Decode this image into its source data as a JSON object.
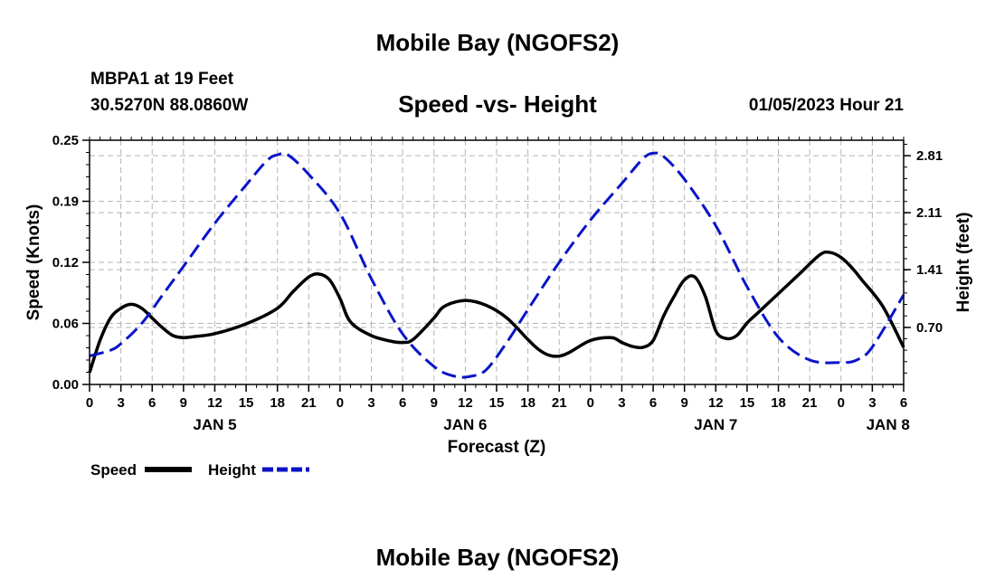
{
  "header": {
    "title": "Mobile Bay (NGOFS2)",
    "station_name": "MBPA1 at 19 Feet",
    "station_coords": "30.5270N  88.0860W",
    "date_text": "01/05/2023 Hour 21"
  },
  "footer": {
    "title": "Mobile Bay (NGOFS2)"
  },
  "chart_data": {
    "type": "line",
    "title": "Speed -vs- Height",
    "xlabel": "Forecast (Z)",
    "ylabel": "Speed (Knots)",
    "y2label": "Height (feet)",
    "grid": true,
    "x_range_hours": [
      0,
      78
    ],
    "x_tick_step_hours": 3,
    "x_tick_labels": [
      "0",
      "3",
      "6",
      "9",
      "12",
      "15",
      "18",
      "21",
      "0",
      "3",
      "6",
      "9",
      "12",
      "15",
      "18",
      "21",
      "0",
      "3",
      "6",
      "9",
      "12",
      "15",
      "18",
      "21",
      "0",
      "3",
      "6"
    ],
    "day_labels": [
      {
        "label": "JAN 5",
        "hour": 12
      },
      {
        "label": "JAN 6",
        "hour": 36
      },
      {
        "label": "JAN 7",
        "hour": 60
      },
      {
        "label": "JAN 8",
        "hour": 76.5
      }
    ],
    "ylim": [
      0,
      0.25
    ],
    "y_ticks": [
      "0.00",
      "0.06",
      "0.12",
      "0.19",
      "0.25"
    ],
    "y2lim": [
      0,
      3.0
    ],
    "y2_ticks": [
      "0.70",
      "1.41",
      "2.11",
      "2.81"
    ],
    "legend": {
      "placement": "bottom-left",
      "speed_label": "Speed",
      "height_label": "Height"
    },
    "colors": {
      "speed": "#000000",
      "height": "#0a14c8",
      "grid": "#b4b4b4"
    },
    "series": [
      {
        "name": "Speed",
        "axis": "left",
        "style": "solid",
        "x": [
          0,
          1,
          2,
          3,
          4,
          5,
          6,
          7,
          8,
          9,
          10,
          12,
          15,
          18,
          19.5,
          21,
          22,
          23,
          24,
          25,
          27,
          29,
          30,
          31,
          33,
          34,
          36,
          38,
          40,
          42,
          43,
          44,
          45,
          46,
          48,
          50,
          51,
          52,
          53,
          54,
          55,
          56,
          57,
          58,
          59,
          60,
          61,
          62,
          63,
          64,
          66,
          68,
          70,
          71,
          72,
          73,
          74,
          76,
          78
        ],
        "values": [
          0.012,
          0.045,
          0.068,
          0.078,
          0.082,
          0.078,
          0.068,
          0.058,
          0.05,
          0.048,
          0.049,
          0.052,
          0.062,
          0.078,
          0.095,
          0.11,
          0.113,
          0.107,
          0.088,
          0.064,
          0.05,
          0.044,
          0.043,
          0.046,
          0.068,
          0.08,
          0.086,
          0.081,
          0.068,
          0.046,
          0.036,
          0.03,
          0.029,
          0.033,
          0.045,
          0.048,
          0.043,
          0.039,
          0.038,
          0.045,
          0.07,
          0.09,
          0.107,
          0.11,
          0.09,
          0.055,
          0.047,
          0.05,
          0.063,
          0.073,
          0.093,
          0.113,
          0.133,
          0.135,
          0.13,
          0.12,
          0.107,
          0.08,
          0.038
        ]
      },
      {
        "name": "Height",
        "axis": "right",
        "style": "dashed",
        "x": [
          0,
          2,
          3,
          5,
          7,
          9,
          12,
          15,
          17,
          18,
          19,
          21,
          24,
          27,
          30,
          33,
          35,
          36.5,
          38,
          40,
          42,
          45,
          48,
          51,
          53,
          54,
          55,
          57,
          60,
          63,
          66,
          69,
          72,
          73.5,
          75,
          78
        ],
        "values": [
          0.35,
          0.42,
          0.5,
          0.75,
          1.1,
          1.45,
          1.98,
          2.45,
          2.75,
          2.82,
          2.82,
          2.58,
          2.1,
          1.3,
          0.62,
          0.22,
          0.1,
          0.1,
          0.18,
          0.52,
          0.92,
          1.5,
          2.02,
          2.47,
          2.77,
          2.84,
          2.8,
          2.52,
          1.95,
          1.2,
          0.58,
          0.3,
          0.27,
          0.3,
          0.46,
          1.1
        ]
      }
    ]
  }
}
